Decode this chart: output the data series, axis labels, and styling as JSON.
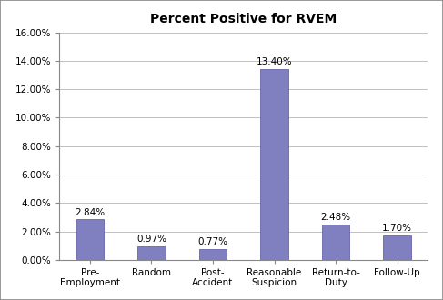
{
  "title": "Percent Positive for RVEM",
  "categories": [
    "Pre-\nEmployment",
    "Random",
    "Post-\nAccident",
    "Reasonable\nSuspicion",
    "Return-to-\nDuty",
    "Follow-Up"
  ],
  "values": [
    2.84,
    0.97,
    0.77,
    13.4,
    2.48,
    1.7
  ],
  "labels": [
    "2.84%",
    "0.97%",
    "0.77%",
    "13.40%",
    "2.48%",
    "1.70%"
  ],
  "bar_color": "#8080c0",
  "bar_edgecolor": "#6666aa",
  "ylim": [
    0,
    16
  ],
  "yticks": [
    0,
    2,
    4,
    6,
    8,
    10,
    12,
    14,
    16
  ],
  "ytick_labels": [
    "0.00%",
    "2.00%",
    "4.00%",
    "6.00%",
    "8.00%",
    "10.00%",
    "12.00%",
    "14.00%",
    "16.00%"
  ],
  "background_color": "#ffffff",
  "outer_border_color": "#888888",
  "title_fontsize": 10,
  "tick_fontsize": 7.5,
  "label_fontsize": 7.5
}
